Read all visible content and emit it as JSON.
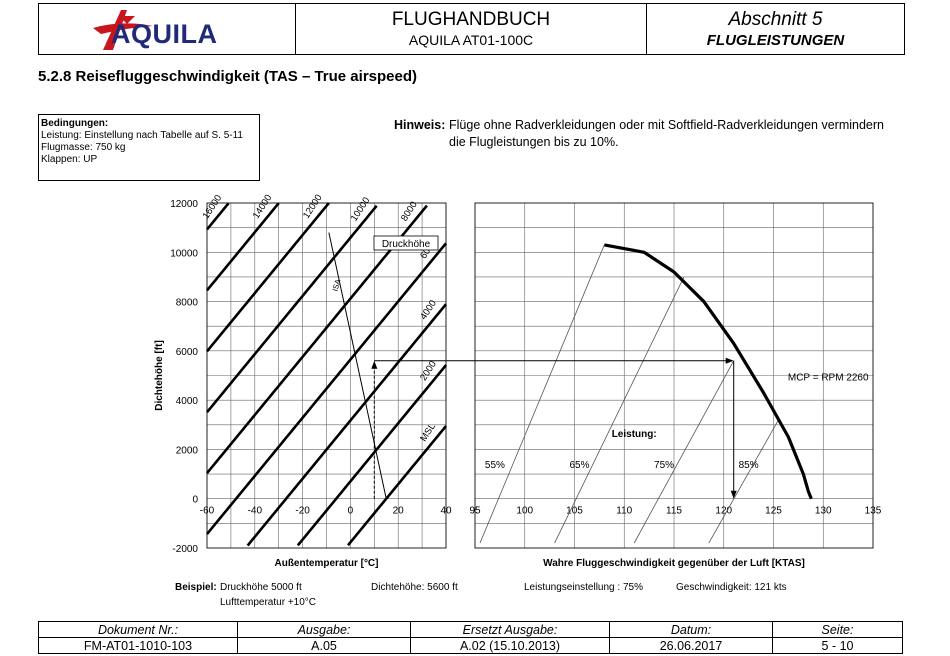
{
  "header": {
    "logo": "AQUILA",
    "title": "FLUGHANDBUCH",
    "subtitle": "AQUILA  AT01-100C",
    "section": "Abschnitt 5",
    "section_name": "FLUGLEISTUNGEN"
  },
  "section_title": "5.2.8 Reisefluggeschwindigkeit (TAS – True airspeed)",
  "conditions": {
    "heading": "Bedingungen:",
    "lines": [
      "Leistung: Einstellung nach Tabelle auf S. 5-11",
      "Flugmasse: 750 kg",
      "Klappen: UP"
    ]
  },
  "hinweis": {
    "label": "Hinweis:",
    "text": "Flüge ohne Radverkleidungen oder mit Softfield-Radverkleidungen vermindern die Flugleistungen bis zu 10%."
  },
  "chart_data": [
    {
      "type": "line",
      "xlabel": "Außentemperatur [°C]",
      "ylabel": "Dichtehöhe [ft]",
      "xlim": [
        -60,
        40
      ],
      "ylim": [
        -2000,
        12000
      ],
      "x_ticks": [
        "-60",
        "-40",
        "-20",
        "0",
        "20",
        "40"
      ],
      "y_ticks": [
        "12000",
        "10000",
        "8000",
        "6000",
        "4000",
        "2000",
        "0",
        "-2000"
      ],
      "grid": true,
      "legend_box": "Druckhöhe",
      "pressure_altitude_series": [
        {
          "name": "MSL",
          "pressure_altitude": 0
        },
        {
          "name": "2000",
          "pressure_altitude": 2000
        },
        {
          "name": "4000",
          "pressure_altitude": 4000
        },
        {
          "name": "6000",
          "pressure_altitude": 6000
        },
        {
          "name": "8000",
          "pressure_altitude": 8000
        },
        {
          "name": "10000",
          "pressure_altitude": 10000
        },
        {
          "name": "12000",
          "pressure_altitude": 12000
        },
        {
          "name": "14000",
          "pressure_altitude": 14000
        },
        {
          "name": "16000",
          "pressure_altitude": 16000
        }
      ],
      "isa_line": {
        "label": "ISA",
        "points": [
          [
            15,
            0
          ],
          [
            -9,
            10800
          ]
        ]
      },
      "example_path": [
        [
          10,
          0
        ],
        [
          10,
          5600
        ],
        [
          121,
          5600
        ]
      ]
    },
    {
      "type": "line",
      "xlabel": "Wahre Fluggeschwindigkeit gegenüber der Luft  [KTAS]",
      "xlim": [
        95,
        135
      ],
      "ylim": [
        -2000,
        12000
      ],
      "x_ticks": [
        "95",
        "100",
        "105",
        "110",
        "115",
        "120",
        "125",
        "130",
        "135"
      ],
      "grid": true,
      "power_label": "Leistung:",
      "power_lines": [
        {
          "name": "55%",
          "points": [
            [
              95.5,
              -1800
            ],
            [
              108,
              10300
            ]
          ]
        },
        {
          "name": "65%",
          "points": [
            [
              103,
              -1800
            ],
            [
              116,
              9000
            ]
          ]
        },
        {
          "name": "75%",
          "points": [
            [
              111,
              -1800
            ],
            [
              121,
              5600
            ]
          ]
        },
        {
          "name": "85%",
          "points": [
            [
              118.5,
              -1800
            ],
            [
              125.5,
              3200
            ]
          ]
        }
      ],
      "mcp_label": "MCP = RPM 2260",
      "mcp_curve": [
        [
          108,
          10300
        ],
        [
          112,
          10000
        ],
        [
          115,
          9200
        ],
        [
          118,
          8000
        ],
        [
          121,
          6300
        ],
        [
          124,
          4300
        ],
        [
          126.5,
          2500
        ],
        [
          128,
          1000
        ],
        [
          128.5,
          300
        ],
        [
          128.8,
          0
        ]
      ],
      "example_result": [
        [
          121,
          5600
        ],
        [
          121,
          0
        ]
      ]
    }
  ],
  "example": {
    "label": "Beispiel:",
    "druckhoehe": "Druckhöhe 5000 ft",
    "lufttemp": "Lufttemperatur +10°C",
    "dichtehoehe": "Dichtehöhe: 5600 ft",
    "leistung": "Leistungseinstellung : 75%",
    "geschwindigkeit": "Geschwindigkeit: 121 kts"
  },
  "footer": {
    "headers": [
      "Dokument Nr.:",
      "Ausgabe:",
      "Ersetzt Ausgabe:",
      "Datum:",
      "Seite:"
    ],
    "values": [
      "FM-AT01-1010-103",
      "A.05",
      "A.02 (15.10.2013)",
      "26.06.2017",
      "5 - 10"
    ]
  }
}
